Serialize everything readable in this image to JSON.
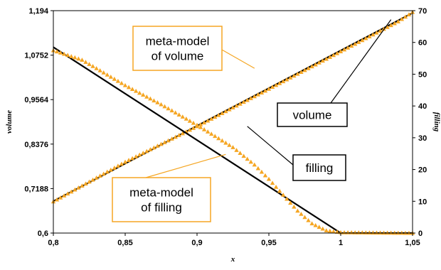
{
  "chart_data": {
    "type": "scatter",
    "xlabel": "x",
    "ylabel_left": "volume",
    "ylabel_right": "filling",
    "xlim": [
      0.8,
      1.05
    ],
    "ylim_left": [
      0.6,
      1.194
    ],
    "ylim_right": [
      0,
      70
    ],
    "x_ticks": [
      "0,8",
      "0,85",
      "0,9",
      "0,95",
      "1",
      "1,05"
    ],
    "y_left_ticks": [
      "0,6",
      "0,7188",
      "0,8376",
      "0,9564",
      "1,0752",
      "1,194"
    ],
    "y_right_ticks": [
      "0",
      "10",
      "20",
      "30",
      "40",
      "50",
      "60",
      "70"
    ],
    "grid": false,
    "colors": {
      "model": "#000000",
      "meta_model": "#F5A623",
      "annotation": "#F5A623"
    },
    "series": [
      {
        "axis": "left",
        "style": "line",
        "x": [
          0.8,
          1.05
        ],
        "y": [
          0.685,
          1.188
        ]
      },
      {
        "axis": "left",
        "style": "markers",
        "marker": "triangle",
        "x": [
          0.8,
          0.85,
          0.9,
          0.95,
          1.0,
          1.02,
          1.04,
          1.05
        ],
        "y": [
          0.684,
          0.79,
          0.885,
          0.985,
          1.085,
          1.125,
          1.165,
          1.19
        ]
      },
      {
        "axis": "right",
        "style": "line",
        "x": [
          0.8,
          1.0,
          1.05
        ],
        "y": [
          58.5,
          0,
          0
        ]
      },
      {
        "axis": "right",
        "style": "markers",
        "marker": "triangle",
        "x": [
          0.8,
          0.82,
          0.85,
          0.875,
          0.9,
          0.925,
          0.94,
          0.95,
          0.96,
          0.97,
          0.98,
          0.99,
          1.0,
          1.05
        ],
        "y": [
          57.5,
          54.5,
          46.5,
          40.5,
          34.0,
          27.0,
          21.5,
          17.0,
          12.0,
          7.0,
          3.0,
          0.8,
          0.2,
          0.0
        ]
      }
    ],
    "annotations": [
      {
        "lines": [
          "meta-model",
          "of volume"
        ],
        "border": "orange",
        "target": [
          0.94,
          1.04
        ]
      },
      {
        "lines": [
          "volume"
        ],
        "border": "black",
        "target": [
          1.035,
          1.17
        ]
      },
      {
        "lines": [
          "filling"
        ],
        "border": "black",
        "target": [
          0.935,
          0.885
        ]
      },
      {
        "lines": [
          "meta-model",
          "of filling"
        ],
        "border": "orange",
        "target": [
          0.92,
          0.81
        ]
      }
    ]
  }
}
